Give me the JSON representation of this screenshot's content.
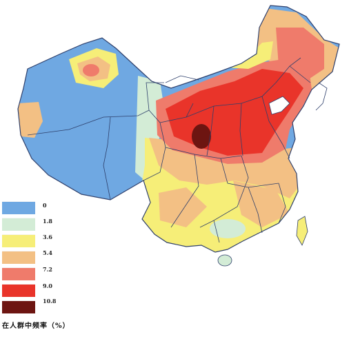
{
  "legend": {
    "title": "在人群中频率（%）",
    "classes": [
      {
        "label": "0",
        "color": "#6fa8e2"
      },
      {
        "label": "1.8",
        "color": "#d3ecd6"
      },
      {
        "label": "3.6",
        "color": "#f6ee78"
      },
      {
        "label": "5.4",
        "color": "#f3c084"
      },
      {
        "label": "7.2",
        "color": "#ef7b6b"
      },
      {
        "label": "9.0",
        "color": "#e9342a"
      },
      {
        "label": "10.8",
        "color": "#6d1511"
      }
    ]
  },
  "map": {
    "boundary_color": "#2e3f6b",
    "ocean_color": "#ffffff"
  }
}
